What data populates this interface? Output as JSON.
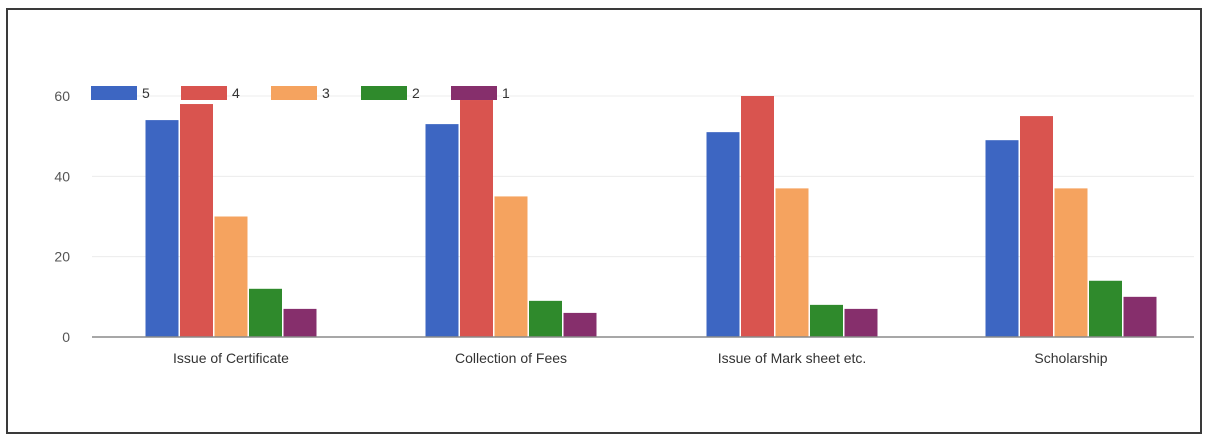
{
  "chart_data": {
    "type": "bar",
    "categories": [
      "Issue of Certificate",
      "Collection of Fees",
      "Issue of Mark sheet etc.",
      "Scholarship"
    ],
    "series": [
      {
        "name": "5",
        "color": "#3d66c2",
        "values": [
          54,
          53,
          51,
          49
        ]
      },
      {
        "name": "4",
        "color": "#d9544f",
        "values": [
          58,
          59,
          60,
          55
        ]
      },
      {
        "name": "3",
        "color": "#f5a35f",
        "values": [
          30,
          35,
          37,
          37
        ]
      },
      {
        "name": "2",
        "color": "#2f8a2c",
        "values": [
          12,
          9,
          8,
          14
        ]
      },
      {
        "name": "1",
        "color": "#862f6c",
        "values": [
          7,
          6,
          7,
          10
        ]
      }
    ],
    "y_ticks": [
      "0",
      "20",
      "40",
      "60"
    ],
    "ylim": [
      0,
      60
    ],
    "grid": true,
    "legend_placement": "top-left",
    "title": "",
    "xlabel": "",
    "ylabel": ""
  }
}
